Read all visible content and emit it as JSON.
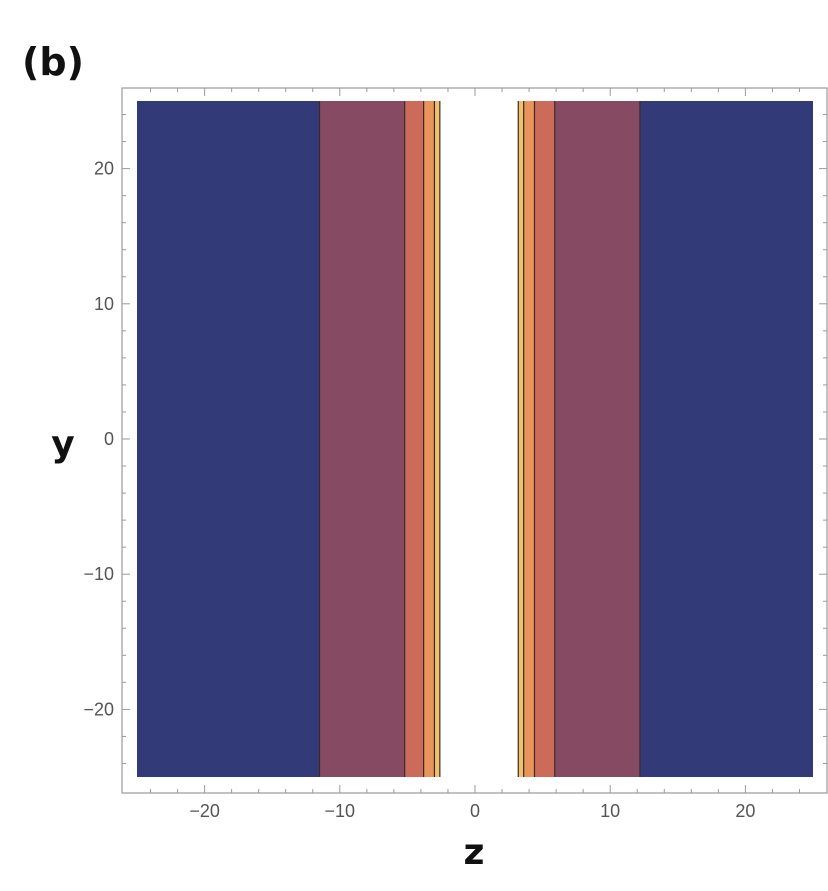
{
  "panel_label": "(b)",
  "chart_data": {
    "type": "heatmap",
    "subtype": "contour",
    "title": "",
    "xlabel": "z",
    "ylabel": "y",
    "xlim": [
      -25,
      25
    ],
    "ylim": [
      -25,
      25
    ],
    "x_ticks": [
      -20,
      -10,
      0,
      10,
      20
    ],
    "y_ticks": [
      -20,
      -10,
      0,
      10,
      20
    ],
    "x_tick_labels": [
      "−20",
      "−10",
      "0",
      "10",
      "20"
    ],
    "y_tick_labels": [
      "−20",
      "−10",
      "0",
      "10",
      "20"
    ],
    "grid": false,
    "legend": "none",
    "bands": [
      {
        "z_from": -25.0,
        "z_to": -11.5,
        "color": "#323a78"
      },
      {
        "z_from": -11.5,
        "z_to": -5.2,
        "color": "#874a63"
      },
      {
        "z_from": -5.2,
        "z_to": -3.8,
        "color": "#cc6b59"
      },
      {
        "z_from": -3.8,
        "z_to": -3.0,
        "color": "#e8945a"
      },
      {
        "z_from": -3.0,
        "z_to": -2.6,
        "color": "#f0c06a"
      },
      {
        "z_from": -2.6,
        "z_to": 3.2,
        "color": "#ffffff"
      },
      {
        "z_from": 3.2,
        "z_to": 3.6,
        "color": "#f0c06a"
      },
      {
        "z_from": 3.6,
        "z_to": 4.4,
        "color": "#e8945a"
      },
      {
        "z_from": 4.4,
        "z_to": 5.9,
        "color": "#cc6b59"
      },
      {
        "z_from": 5.9,
        "z_to": 12.2,
        "color": "#874a63"
      },
      {
        "z_from": 12.2,
        "z_to": 25.0,
        "color": "#323a78"
      }
    ],
    "contour_lines_z": [
      -11.5,
      -5.2,
      -3.8,
      -3.0,
      -2.6,
      3.2,
      3.6,
      4.4,
      5.9,
      12.2
    ]
  }
}
